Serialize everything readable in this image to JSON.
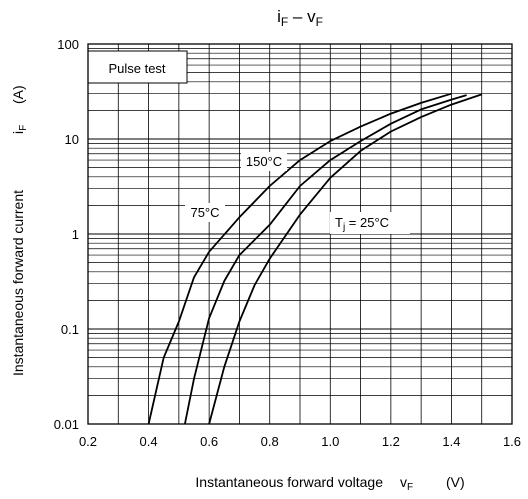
{
  "chart_data": {
    "type": "line",
    "title": "iF – vF",
    "title_main": "i",
    "title_sub": "F",
    "title_sep": " – v",
    "title_sub2": "F",
    "xlabel": "Instantaneous forward voltage",
    "xlabel_symbol": "v",
    "xlabel_sub": "F",
    "xlabel_unit": "(V)",
    "ylabel": "Instantaneous forward current",
    "ylabel_symbol": "i",
    "ylabel_sub": "F",
    "ylabel_unit": "(A)",
    "xlim": [
      0.2,
      1.6
    ],
    "ylim": [
      0.01,
      100
    ],
    "y_scale": "log",
    "grid": true,
    "x_ticks": [
      "0.2",
      "0.4",
      "0.6",
      "0.8",
      "1.0",
      "1.2",
      "1.4",
      "1.6"
    ],
    "y_ticks": [
      "0.01",
      "0.1",
      "1",
      "10",
      "100"
    ],
    "legend_box": "Pulse test",
    "series": [
      {
        "name": "150°C",
        "points": [
          [
            0.4,
            0.01
          ],
          [
            0.45,
            0.05
          ],
          [
            0.5,
            0.12
          ],
          [
            0.55,
            0.35
          ],
          [
            0.6,
            0.65
          ],
          [
            0.7,
            1.5
          ],
          [
            0.8,
            3.2
          ],
          [
            0.9,
            6.0
          ],
          [
            1.0,
            9.5
          ],
          [
            1.1,
            13.5
          ],
          [
            1.2,
            18.5
          ],
          [
            1.3,
            24.0
          ],
          [
            1.4,
            30.0
          ]
        ]
      },
      {
        "name": "75°C",
        "points": [
          [
            0.52,
            0.01
          ],
          [
            0.55,
            0.03
          ],
          [
            0.6,
            0.13
          ],
          [
            0.65,
            0.32
          ],
          [
            0.7,
            0.6
          ],
          [
            0.8,
            1.25
          ],
          [
            0.9,
            3.2
          ],
          [
            1.0,
            6.0
          ],
          [
            1.1,
            9.5
          ],
          [
            1.2,
            14.5
          ],
          [
            1.3,
            20.5
          ],
          [
            1.4,
            26.0
          ],
          [
            1.45,
            29.0
          ]
        ]
      },
      {
        "name": "Tj = 25°C",
        "name_main": "T",
        "name_sub": "j",
        "name_rest": " = 25°C",
        "points": [
          [
            0.6,
            0.01
          ],
          [
            0.65,
            0.04
          ],
          [
            0.7,
            0.12
          ],
          [
            0.75,
            0.29
          ],
          [
            0.8,
            0.55
          ],
          [
            0.9,
            1.6
          ],
          [
            1.0,
            3.9
          ],
          [
            1.1,
            7.5
          ],
          [
            1.2,
            12.0
          ],
          [
            1.3,
            17.0
          ],
          [
            1.4,
            23.0
          ],
          [
            1.5,
            29.5
          ]
        ]
      }
    ]
  }
}
